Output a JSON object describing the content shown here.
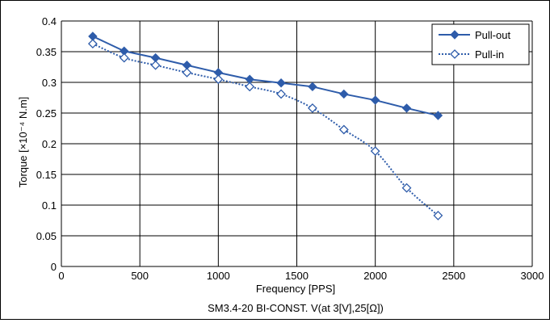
{
  "chart_data": {
    "type": "line",
    "title": "SM3.4-20 BI-CONST. V(at 3[V],25[Ω])",
    "xlabel": "Frequency [PPS]",
    "ylabel": "Torque [×10⁻⁴ N.m]",
    "xlim": [
      0,
      3000
    ],
    "ylim": [
      0,
      0.4
    ],
    "x_ticks": [
      "0",
      "500",
      "1000",
      "1500",
      "2000",
      "2500",
      "3000"
    ],
    "y_ticks": [
      "0",
      "0.05",
      "0.1",
      "0.15",
      "0.2",
      "0.25",
      "0.3",
      "0.35",
      "0.4"
    ],
    "grid": true,
    "legend_position": "top-right",
    "series": [
      {
        "name": "Pull-out",
        "style": "solid",
        "marker": "filled-diamond",
        "color": "#2e5caa",
        "x": [
          200,
          400,
          600,
          800,
          1000,
          1200,
          1400,
          1600,
          1800,
          2000,
          2200,
          2400
        ],
        "values": [
          0.375,
          0.351,
          0.34,
          0.328,
          0.316,
          0.305,
          0.299,
          0.293,
          0.281,
          0.271,
          0.258,
          0.246
        ]
      },
      {
        "name": "Pull-in",
        "style": "dotted",
        "marker": "open-diamond",
        "color": "#2e5caa",
        "x": [
          200,
          400,
          600,
          800,
          1000,
          1200,
          1400,
          1600,
          1800,
          2000,
          2200,
          2400
        ],
        "values": [
          0.363,
          0.34,
          0.328,
          0.316,
          0.305,
          0.293,
          0.281,
          0.258,
          0.223,
          0.188,
          0.128,
          0.083
        ]
      }
    ]
  }
}
